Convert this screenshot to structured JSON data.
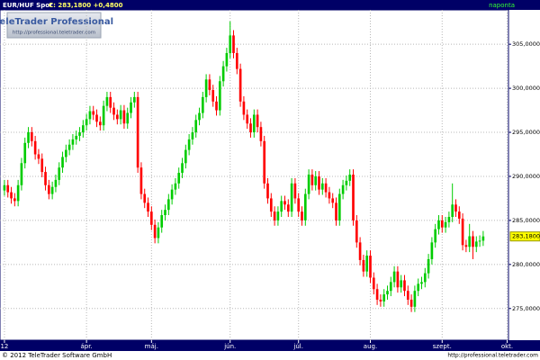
{
  "header": {
    "instrument": "EUR/HUF Spot",
    "quote": "C: 283,1800 +0,4800",
    "period": "naponta"
  },
  "logo": {
    "name": "TeleTrader Professional",
    "url": "http://professional.teletrader.com"
  },
  "footer": {
    "copyright": "© 2012 TeleTrader Software GmbH",
    "url": "http://professional.teletrader.com"
  },
  "chart_data": {
    "type": "candlestick",
    "up_color": "#00cc00",
    "down_color": "#ff0000",
    "grid": true,
    "last_label": "283,1800",
    "ylim": [
      271.4,
      308.9
    ],
    "yticks": [
      {
        "value": 275,
        "label": "275,0000"
      },
      {
        "value": 280,
        "label": "280,0000"
      },
      {
        "value": 285,
        "label": "285,0000"
      },
      {
        "value": 290,
        "label": "290,0000"
      },
      {
        "value": 295,
        "label": "295,0000"
      },
      {
        "value": 300,
        "label": "300,0000"
      },
      {
        "value": 305,
        "label": "305,0000"
      }
    ],
    "xlim": [
      -1.3,
      147.4
    ],
    "xticks": [
      {
        "value": 0,
        "label": "12"
      },
      {
        "value": 24,
        "label": "ápr."
      },
      {
        "value": 43,
        "label": "máj."
      },
      {
        "value": 66,
        "label": "jún."
      },
      {
        "value": 86,
        "label": "júl."
      },
      {
        "value": 107,
        "label": "aug."
      },
      {
        "value": 128,
        "label": "szept."
      },
      {
        "value": 147,
        "label": "okt."
      }
    ],
    "open": [
      288.4,
      289.0,
      288.2,
      287.5,
      287.2,
      289.0,
      291.5,
      293.8,
      295.0,
      294.0,
      292.5,
      292.0,
      290.5,
      289.0,
      288.0,
      288.8,
      289.6,
      291.0,
      292.2,
      293.0,
      293.6,
      294.2,
      294.6,
      295.0,
      295.8,
      296.5,
      297.4,
      297.0,
      296.2,
      295.8,
      298.0,
      299.0,
      297.8,
      297.0,
      296.5,
      297.5,
      296.0,
      297.2,
      298.4,
      299.0,
      291.0,
      288.0,
      287.0,
      286.0,
      284.5,
      283.0,
      284.2,
      285.6,
      286.2,
      287.4,
      288.5,
      289.2,
      290.4,
      291.5,
      293.0,
      294.2,
      295.0,
      296.4,
      297.2,
      299.0,
      301.0,
      299.8,
      298.5,
      297.5,
      300.8,
      302.5,
      304.0,
      306.0,
      304.0,
      302.2,
      298.5,
      297.0,
      296.0,
      295.0,
      297.0,
      295.6,
      294.0,
      289.2,
      287.5,
      286.0,
      285.0,
      286.0,
      287.2,
      286.8,
      286.0,
      289.2,
      287.5,
      286.0,
      285.0,
      288.0,
      290.2,
      289.0,
      290.0,
      288.5,
      289.2,
      288.2,
      287.5,
      287.0,
      285.0,
      288.0,
      289.0,
      289.5,
      290.2,
      285.0,
      282.5,
      280.5,
      279.2,
      281.0,
      278.5,
      277.2,
      276.0,
      275.8,
      276.6,
      277.0,
      278.0,
      279.2,
      277.4,
      278.2,
      277.0,
      276.0,
      275.2,
      277.0,
      277.8,
      278.0,
      279.0,
      280.6,
      282.5,
      284.0,
      285.0,
      284.2,
      284.8,
      285.4,
      286.8,
      286.0,
      285.2,
      282.2,
      282.0,
      283.2,
      282.0,
      282.6,
      282.7
    ],
    "high": [
      289.6,
      289.6,
      288.8,
      288.1,
      289.6,
      292.1,
      294.4,
      295.6,
      295.6,
      294.6,
      293.1,
      292.6,
      291.1,
      289.6,
      289.4,
      290.2,
      291.6,
      292.8,
      293.6,
      294.2,
      294.8,
      295.2,
      295.6,
      296.4,
      297.1,
      298.0,
      298.0,
      297.6,
      296.8,
      298.6,
      299.6,
      299.6,
      298.4,
      297.6,
      298.1,
      298.1,
      297.8,
      299.0,
      299.6,
      299.6,
      291.6,
      288.6,
      287.6,
      286.6,
      285.1,
      284.8,
      286.2,
      286.8,
      288.0,
      289.1,
      289.8,
      291.0,
      292.1,
      293.6,
      294.8,
      295.6,
      297.0,
      297.8,
      299.6,
      301.6,
      301.6,
      300.4,
      299.1,
      301.4,
      303.1,
      304.6,
      307.6,
      306.6,
      304.6,
      302.8,
      299.1,
      297.6,
      296.6,
      297.6,
      297.6,
      296.2,
      294.6,
      289.8,
      288.1,
      286.6,
      286.6,
      287.8,
      287.8,
      287.4,
      289.8,
      289.8,
      288.1,
      286.6,
      288.6,
      290.8,
      290.8,
      290.6,
      290.6,
      289.8,
      289.8,
      288.8,
      288.1,
      287.6,
      288.6,
      289.6,
      290.1,
      290.8,
      290.8,
      285.6,
      283.1,
      281.1,
      281.6,
      281.6,
      279.1,
      277.8,
      276.6,
      277.2,
      277.6,
      278.6,
      279.8,
      279.8,
      278.8,
      278.8,
      277.6,
      276.6,
      277.6,
      278.4,
      278.6,
      279.6,
      281.2,
      283.1,
      284.6,
      285.6,
      285.6,
      285.4,
      286.0,
      289.2,
      287.4,
      286.6,
      285.8,
      282.8,
      284.6,
      283.8,
      283.2,
      283.3,
      283.8
    ],
    "low": [
      287.8,
      287.6,
      286.9,
      286.6,
      286.6,
      288.4,
      290.9,
      293.2,
      293.4,
      291.9,
      291.4,
      289.9,
      288.4,
      287.4,
      287.4,
      288.2,
      289.0,
      290.4,
      291.6,
      292.4,
      293.0,
      293.6,
      294.0,
      294.4,
      295.2,
      295.9,
      296.4,
      295.6,
      295.2,
      295.2,
      297.4,
      297.2,
      296.4,
      295.9,
      295.9,
      295.4,
      295.4,
      296.6,
      297.8,
      290.4,
      287.4,
      286.4,
      285.4,
      283.9,
      282.4,
      282.4,
      283.6,
      285.0,
      285.6,
      286.8,
      287.9,
      288.6,
      289.8,
      290.9,
      292.4,
      293.6,
      294.4,
      295.8,
      296.6,
      298.4,
      299.2,
      297.9,
      296.9,
      296.9,
      300.2,
      301.9,
      303.4,
      303.4,
      301.6,
      297.9,
      296.4,
      295.4,
      294.4,
      294.4,
      295.0,
      293.4,
      288.6,
      286.9,
      285.4,
      284.4,
      284.4,
      285.4,
      286.2,
      285.4,
      285.4,
      286.9,
      285.4,
      284.4,
      284.4,
      287.4,
      288.4,
      288.4,
      287.9,
      287.9,
      287.6,
      286.9,
      286.4,
      284.4,
      284.4,
      287.4,
      288.4,
      288.9,
      284.4,
      281.9,
      279.9,
      278.6,
      278.6,
      277.9,
      276.6,
      275.4,
      275.2,
      275.2,
      276.0,
      276.4,
      277.4,
      276.8,
      276.8,
      276.4,
      275.4,
      274.6,
      274.6,
      276.4,
      277.2,
      277.4,
      278.4,
      280.0,
      281.9,
      283.4,
      283.6,
      283.6,
      284.2,
      284.8,
      285.4,
      284.6,
      281.6,
      281.4,
      281.4,
      280.6,
      281.4,
      282.0,
      282.1
    ],
    "close": [
      289.0,
      288.2,
      287.5,
      287.2,
      289.0,
      291.5,
      293.8,
      295.0,
      294.0,
      292.5,
      292.0,
      290.5,
      289.0,
      288.0,
      288.8,
      289.6,
      291.0,
      292.2,
      293.0,
      293.6,
      294.2,
      294.6,
      295.0,
      295.8,
      296.5,
      297.4,
      297.0,
      296.2,
      295.8,
      298.0,
      299.0,
      297.8,
      297.0,
      296.5,
      297.5,
      296.0,
      297.2,
      298.4,
      299.0,
      291.0,
      288.0,
      287.0,
      286.0,
      284.5,
      283.0,
      284.2,
      285.6,
      286.2,
      287.4,
      288.5,
      289.2,
      290.4,
      291.5,
      293.0,
      294.2,
      295.0,
      296.4,
      297.2,
      299.0,
      301.0,
      299.8,
      298.5,
      297.5,
      300.8,
      302.5,
      304.0,
      306.0,
      304.0,
      302.2,
      298.5,
      297.0,
      296.0,
      295.0,
      297.0,
      295.6,
      294.0,
      289.2,
      287.5,
      286.0,
      285.0,
      286.0,
      287.2,
      286.8,
      286.0,
      289.2,
      287.5,
      286.0,
      285.0,
      288.0,
      290.2,
      289.0,
      290.0,
      288.5,
      289.2,
      288.2,
      287.5,
      287.0,
      285.0,
      288.0,
      289.0,
      289.5,
      290.2,
      285.0,
      282.5,
      280.5,
      279.2,
      281.0,
      278.5,
      277.2,
      276.0,
      275.8,
      276.6,
      277.0,
      278.0,
      279.2,
      277.4,
      278.2,
      277.0,
      276.0,
      275.2,
      277.0,
      277.8,
      278.0,
      279.0,
      280.6,
      282.5,
      284.0,
      285.0,
      284.2,
      284.8,
      285.4,
      286.8,
      286.0,
      285.2,
      282.2,
      282.0,
      283.2,
      282.0,
      282.6,
      282.7,
      283.18
    ]
  }
}
